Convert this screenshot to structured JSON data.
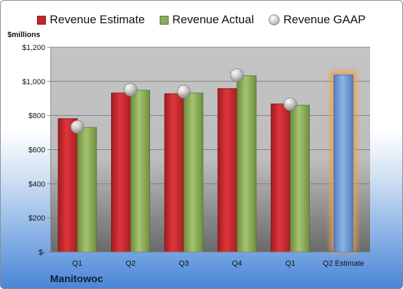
{
  "company": "Manitowoc",
  "units_label": "$millions",
  "legend": {
    "estimate": "Revenue Estimate",
    "actual": "Revenue Actual",
    "gaap": "Revenue GAAP"
  },
  "colors": {
    "estimate": "#c0272d",
    "actual": "#8cad58",
    "gaap": "#bfbfbf",
    "highlight_bar": "#6f9bd6",
    "highlight_glow": "#f0a040"
  },
  "chart_data": {
    "type": "bar",
    "categories": [
      "Q1",
      "Q2",
      "Q3",
      "Q4",
      "Q1",
      "Q2 Estimate"
    ],
    "series": [
      {
        "name": "Revenue Estimate",
        "values": [
          782,
          932,
          928,
          958,
          868,
          null
        ]
      },
      {
        "name": "Revenue Actual",
        "values": [
          730,
          948,
          932,
          1033,
          860,
          1038
        ]
      },
      {
        "name": "Revenue GAAP",
        "values": [
          733,
          951,
          940,
          1036,
          866,
          null
        ]
      }
    ],
    "ylim": [
      0,
      1200
    ],
    "y_ticks": [
      0,
      200,
      400,
      600,
      800,
      1000,
      1200
    ],
    "y_tick_labels": [
      "$-",
      "$200",
      "$400",
      "$600",
      "$800",
      "$1,000",
      "$1,200"
    ],
    "highlight_category": "Q2 Estimate",
    "grid": true,
    "legend_position": "top"
  }
}
